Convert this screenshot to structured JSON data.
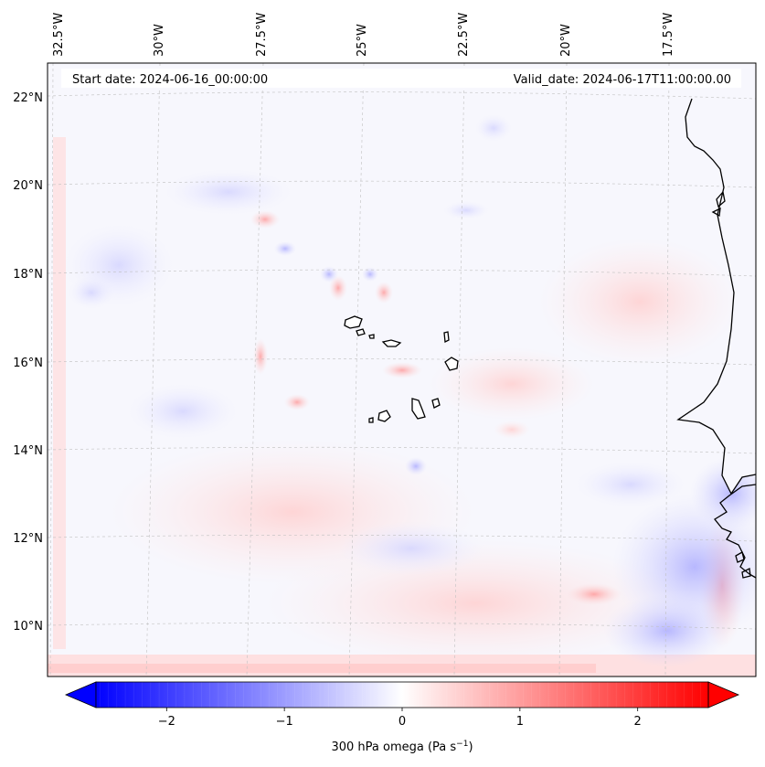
{
  "map": {
    "start_date_text": "Start date: 2024-06-16_00:00:00",
    "valid_date_text": "Valid_date: 2024-06-17T11:00:00.00",
    "longitude_labels": [
      "32.5°W",
      "30°W",
      "27.5°W",
      "25°W",
      "22.5°W",
      "20°W",
      "17.5°W"
    ],
    "latitude_labels": [
      "22°N",
      "20°N",
      "18°N",
      "16°N",
      "14°N",
      "12°N",
      "10°N"
    ],
    "field": "300 hPa omega",
    "region": "Cape Verde islands and West African coast"
  },
  "colorbar": {
    "label": "300 hPa omega (Pa s",
    "label_exponent": "−1",
    "label_close": ")",
    "ticks": [
      "−2",
      "−1",
      "0",
      "1",
      "2"
    ],
    "tick_values": [
      -2,
      -1,
      0,
      1,
      2
    ],
    "range": [
      -2.6,
      2.6
    ],
    "colormap": "bwr",
    "min_color": "#0000ff",
    "mid_color": "#ffffff",
    "max_color": "#ff0000"
  }
}
